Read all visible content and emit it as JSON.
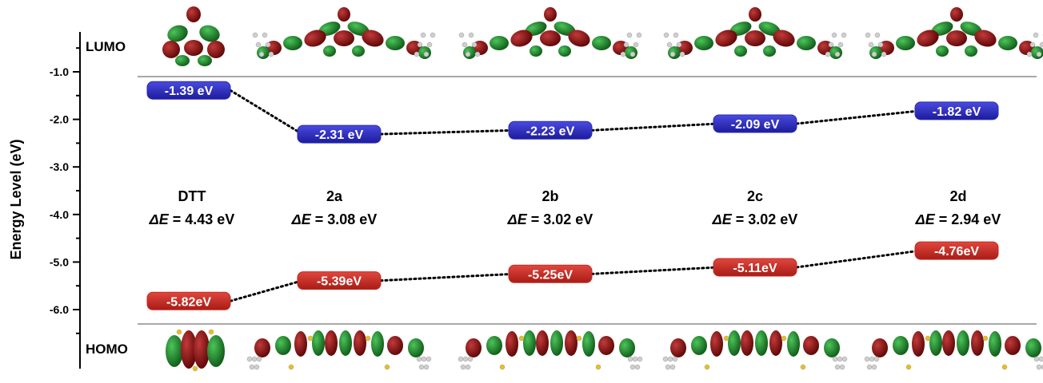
{
  "chart_data": {
    "type": "line",
    "ylabel": "Energy Level (eV)",
    "ylim": [
      -6.0,
      -1.0
    ],
    "yticks": [
      "-1.0",
      "-2.0",
      "-3.0",
      "-4.0",
      "-5.0",
      "-6.0"
    ],
    "categories": [
      "DTT",
      "2a",
      "2b",
      "2c",
      "2d"
    ],
    "top_label": "LUMO",
    "bottom_label": "HOMO",
    "series": [
      {
        "name": "LUMO",
        "values": [
          -1.39,
          -2.31,
          -2.23,
          -2.09,
          -1.82
        ],
        "labels": [
          "-1.39 eV",
          "-2.31 eV",
          "-2.23 eV",
          "-2.09 eV",
          "-1.82 eV"
        ],
        "color": "#2b2bb8"
      },
      {
        "name": "HOMO",
        "values": [
          -5.82,
          -5.39,
          -5.25,
          -5.11,
          -4.76
        ],
        "labels": [
          "-5.82eV",
          "-5.39eV",
          "-5.25eV",
          "-5.11eV",
          "-4.76eV"
        ],
        "color": "#c62a22"
      }
    ],
    "gap_prefix": "ΔE",
    "gaps": [
      "= 4.43 eV",
      "= 3.08 eV",
      "= 3.02 eV",
      "= 3.02 eV",
      "= 2.94 eV"
    ],
    "grid": false,
    "legend": "none"
  },
  "orbital_colors": {
    "positive": "#8b1010",
    "negative": "#1f8a2a",
    "sulfur": "#e8c020",
    "hydrogen": "#cfcfcf"
  }
}
